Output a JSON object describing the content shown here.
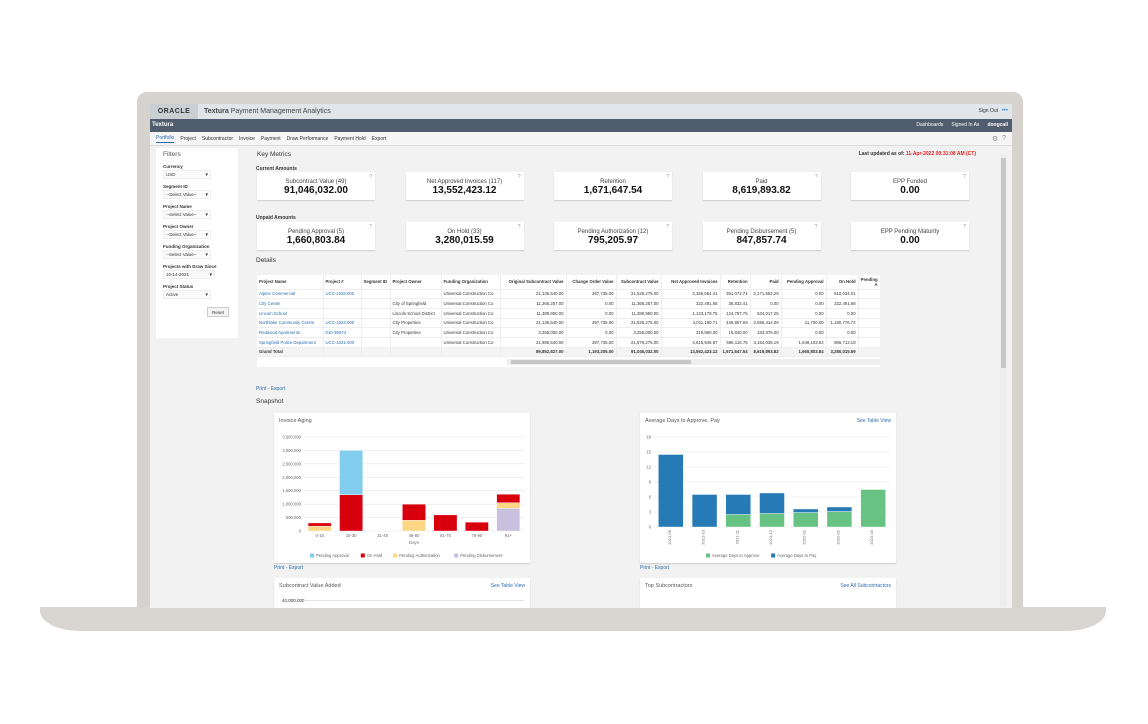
{
  "header": {
    "logo": "ORACLE",
    "app_brand": "Textura",
    "app_title": "Payment Management Analytics",
    "sign_out": "Sign Out",
    "more": "•••"
  },
  "subheader": {
    "brand": "Textura",
    "dashboards": "Dashboards",
    "signed_in_as": "Signed In As",
    "user": "doogcall"
  },
  "nav": {
    "tabs": [
      "Portfolio",
      "Project",
      "Subcontractor",
      "Invoice",
      "Payment",
      "Draw Performance",
      "Payment Hold",
      "Export"
    ],
    "active": "Portfolio",
    "icons": [
      "gear-icon",
      "help-icon"
    ]
  },
  "filters": {
    "title": "Filters",
    "fields": [
      {
        "label": "Currency",
        "value": "USD"
      },
      {
        "label": "Segment ID",
        "value": "--Select Value--"
      },
      {
        "label": "Project Name",
        "value": "--Select Value--"
      },
      {
        "label": "Project Owner",
        "value": "--Select Value--"
      },
      {
        "label": "Funding Organization",
        "value": "--Select Value--"
      },
      {
        "label": "Projects with Draw Since",
        "value": "10-14-2021"
      },
      {
        "label": "Project Status",
        "value": "Active"
      }
    ],
    "reset": "Reset"
  },
  "metrics": {
    "title": "Key Metrics",
    "last_updated_label": "Last updated as of:",
    "last_updated": "11-Apr-2022 00:31:08 AM (CT)",
    "current_title": "Current Amounts",
    "current": [
      {
        "label": "Subcontract Value (49)",
        "value": "91,046,032.00"
      },
      {
        "label": "Net Approved Invoices (117)",
        "value": "13,552,423.12"
      },
      {
        "label": "Retention",
        "value": "1,671,647.54"
      },
      {
        "label": "Paid",
        "value": "8,619,893.82"
      },
      {
        "label": "EPP Funded",
        "value": "0.00"
      }
    ],
    "unpaid_title": "Unpaid Amounts",
    "unpaid": [
      {
        "label": "Pending Approval (5)",
        "value": "1,660,803.84"
      },
      {
        "label": "On Hold (33)",
        "value": "3,280,015.59"
      },
      {
        "label": "Pending Authorization (12)",
        "value": "795,205.97"
      },
      {
        "label": "Pending Disbursement (5)",
        "value": "847,857.74"
      },
      {
        "label": "EPP Pending Maturity",
        "value": "0.00"
      }
    ]
  },
  "details": {
    "title": "Details",
    "columns": [
      "Project Name",
      "Project #",
      "Segment ID",
      "Project Owner",
      "Funding Organization",
      "Original Subcontract Value",
      "Change Order Value",
      "Subcontract Value",
      "Net Approved Invoices",
      "Retention",
      "Paid",
      "Pending Approval",
      "On Hold",
      "Pending A"
    ],
    "rows": [
      [
        "Alpine Commercial",
        "UCC-1026.000",
        "",
        "",
        "Universal Construction Co",
        "21,136,540.00",
        "397,735.00",
        "21,526,275.00",
        "3,156,654.41",
        "351,072.74",
        "2,171,552.29",
        "0.00",
        "610,034.01",
        ""
      ],
      [
        "City Center",
        "",
        "",
        "City of Springfield",
        "Universal Construction Co",
        "11,366,257.00",
        "0.00",
        "11,366,257.00",
        "322,491.68",
        "35,832.41",
        "0.00",
        "0.00",
        "322,491.68",
        ""
      ],
      [
        "Lincoln School",
        "",
        "",
        "Lincoln School District",
        "Universal Construction Co",
        "11,389,950.00",
        "0.00",
        "11,389,950.00",
        "1,123,179.75",
        "124,797.75",
        "534,017.25",
        "0.00",
        "0.00",
        ""
      ],
      [
        "Northlake Community Centre",
        "UCC-1023.000",
        "",
        "City Properties",
        "Universal Construction Co",
        "21,136,540.00",
        "397,735.00",
        "21,526,275.00",
        "4,011,190.71",
        "446,957.69",
        "2,556,414.09",
        "11,700.00",
        "1,180,776.72",
        ""
      ],
      [
        "Redwood Apartments",
        "010-35074",
        "",
        "City Properties",
        "Universal Construction Co",
        "3,255,000.00",
        "0.00",
        "3,255,000.00",
        "319,960.00",
        "16,840.00",
        "163,875.00",
        "0.00",
        "0.00",
        ""
      ],
      [
        "Springfield Police Department",
        "UCC-1021.000",
        "",
        "",
        "Universal Construction Co",
        "21,986,540.00",
        "397,735.00",
        "21,976,275.00",
        "4,615,946.97",
        "696,116.75",
        "3,164,035.19",
        "1,649,103.84",
        "966,713.18",
        ""
      ]
    ],
    "total": [
      "Grand Total",
      "",
      "",
      "",
      "",
      "89,852,827.00",
      "1,193,205.00",
      "91,046,032.00",
      "13,552,423.12",
      "1,671,647.54",
      "8,619,893.82",
      "1,660,803.84",
      "3,280,015.59",
      ""
    ],
    "print_export": "Print - Export"
  },
  "snapshot": {
    "title": "Snapshot",
    "print_export": "Print - Export",
    "bottom_left": {
      "title": "Subcontract Value Added",
      "link": "See Table View",
      "tick": "40,000,000"
    },
    "bottom_right": {
      "title": "Top Subcontractors",
      "link": "See All Subcontractors"
    }
  },
  "chart_data": [
    {
      "type": "bar",
      "stacked": true,
      "title": "Invoice Aging",
      "xlabel": "Days",
      "ylabel": "",
      "ylim": [
        0,
        3500000
      ],
      "yticks": [
        "0",
        "500,000",
        "1,000,000",
        "1,500,000",
        "2,000,000",
        "2,500,000",
        "3,000,000",
        "3,500,000"
      ],
      "grid": true,
      "legend": "bottom",
      "categories": [
        "0-15",
        "16-30",
        "31-45",
        "46-60",
        "61-75",
        "76-90",
        "91+"
      ],
      "series": [
        {
          "name": "Pending Disbursement",
          "color": "#c9c0dd",
          "values": [
            0,
            0,
            0,
            0,
            0,
            0,
            850000
          ]
        },
        {
          "name": "Pending Authorization",
          "color": "#fcd585",
          "values": [
            180000,
            0,
            0,
            400000,
            0,
            0,
            200000
          ]
        },
        {
          "name": "On Hold",
          "color": "#d9000d",
          "values": [
            120000,
            1350000,
            0,
            600000,
            600000,
            330000,
            320000
          ]
        },
        {
          "name": "Pending Approval",
          "color": "#82ccee",
          "values": [
            0,
            1650000,
            0,
            0,
            0,
            0,
            0
          ]
        }
      ],
      "legend_order": [
        "Pending Approval",
        "On Hold",
        "Pending Authorization",
        "Pending Disbursement"
      ]
    },
    {
      "type": "bar",
      "stacked": true,
      "title": "Average Days to Approve, Pay",
      "link": "See Table View",
      "xlabel": "",
      "ylabel": "",
      "ylim": [
        0,
        18
      ],
      "yticks": [
        "0",
        "3",
        "6",
        "9",
        "12",
        "15",
        "18"
      ],
      "grid": true,
      "legend": "bottom",
      "categories": [
        "2021-09",
        "2021-10",
        "2021-11",
        "2021-12",
        "2022-01",
        "2022-02",
        "2022-03"
      ],
      "series": [
        {
          "name": "Average Days to Approve",
          "color": "#67c383",
          "values": [
            0,
            0,
            2.5,
            2.7,
            2.9,
            3.1,
            7.5
          ]
        },
        {
          "name": "Average Days to Pay",
          "color": "#267bb6",
          "values": [
            14.5,
            6.5,
            4,
            4.1,
            0.7,
            0.9,
            0
          ]
        }
      ],
      "legend_order": [
        "Average Days to Approve",
        "Average Days to Pay"
      ]
    }
  ]
}
